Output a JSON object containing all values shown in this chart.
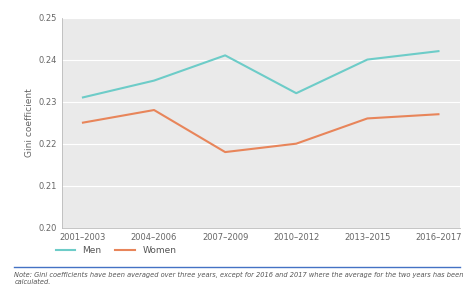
{
  "x_labels": [
    "2001–2003",
    "2004–2006",
    "2007–2009",
    "2010–2012",
    "2013–2015",
    "2016–2017"
  ],
  "x_positions": [
    0,
    1,
    2,
    3,
    4,
    5
  ],
  "men_values": [
    0.231,
    0.235,
    0.241,
    0.232,
    0.24,
    0.242
  ],
  "women_values": [
    0.225,
    0.228,
    0.218,
    0.22,
    0.226,
    0.227
  ],
  "men_color": "#6dccc8",
  "women_color": "#e8855a",
  "ylabel": "Gini coefficient",
  "ylim": [
    0.2,
    0.25
  ],
  "yticks": [
    0.2,
    0.21,
    0.22,
    0.23,
    0.24,
    0.25
  ],
  "legend_men": "Men",
  "legend_women": "Women",
  "plot_bg_color": "#eaeaea",
  "fig_bg_color": "#ffffff",
  "note_text": "Note: Gini coefficients have been averaged over three years, except for 2016 and 2017 where the average for the two years has been\ncalculated.",
  "separator_color": "#4472C4",
  "line_width": 1.5
}
